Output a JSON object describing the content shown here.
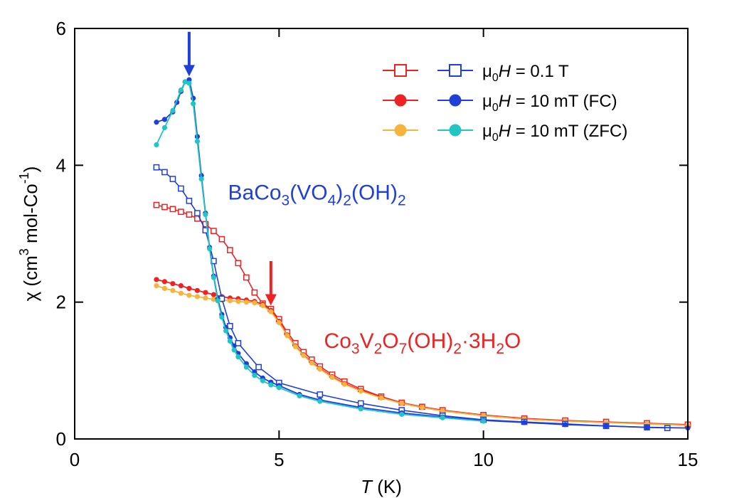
{
  "chart_data": {
    "type": "line",
    "xlabel": "T (K)",
    "xlabel_parts": {
      "var": "T",
      "unit": " (K)"
    },
    "ylabel": "χ (cm3 mol-Co-1)",
    "ylabel_parts": {
      "base": "χ (cm",
      "sup1": "3",
      "mid": " mol-Co",
      "sup2": "-1",
      "end": ")"
    },
    "xlim": [
      0,
      15
    ],
    "ylim": [
      0,
      6
    ],
    "xticks": [
      0,
      5,
      10,
      15
    ],
    "yticks": [
      0,
      2,
      4,
      6
    ],
    "xtick_labels": [
      "0",
      "5",
      "10",
      "15"
    ],
    "ytick_labels": [
      "0",
      "2",
      "4",
      "6"
    ],
    "grid": false,
    "legend_position": "top-right",
    "legend": [
      {
        "label": "μ0H = 0.1 T",
        "parts": {
          "mu": "μ",
          "sub": "0",
          "var": "H",
          "rest": " = 0.1 T"
        },
        "marker": "square-open",
        "colors": [
          "#ee2222",
          "#1f3fd8"
        ]
      },
      {
        "label": "μ0H = 10 mT (FC)",
        "parts": {
          "mu": "μ",
          "sub": "0",
          "var": "H",
          "rest": " = 10 mT (FC)"
        },
        "marker": "circle-filled",
        "colors": [
          "#ee2222",
          "#1f3fd8"
        ]
      },
      {
        "label": "μ0H = 10 mT (ZFC)",
        "parts": {
          "mu": "μ",
          "sub": "0",
          "var": "H",
          "rest": " = 10 mT (ZFC)"
        },
        "marker": "circle-filled",
        "colors": [
          "#f5b53c",
          "#22c4c4"
        ]
      }
    ],
    "annotations": [
      {
        "text": "BaCo3(VO4)2(OH)2",
        "color": "#1f3fd8",
        "runs": [
          [
            "BaCo",
            ""
          ],
          [
            "3",
            "sub"
          ],
          [
            "(VO",
            ""
          ],
          [
            "4",
            "sub"
          ],
          [
            ")",
            ""
          ],
          [
            "2",
            "sub"
          ],
          [
            "(OH)",
            ""
          ],
          [
            "2",
            "sub"
          ]
        ],
        "x": 3.75,
        "y": 3.5
      },
      {
        "text": "Co3V2O7(OH)2·3H2O",
        "color": "#ee2222",
        "runs": [
          [
            "Co",
            ""
          ],
          [
            "3",
            "sub"
          ],
          [
            "V",
            ""
          ],
          [
            "2",
            "sub"
          ],
          [
            "O",
            ""
          ],
          [
            "7",
            "sub"
          ],
          [
            "(OH)",
            ""
          ],
          [
            "2",
            "sub"
          ],
          [
            "·3H",
            ""
          ],
          [
            "2",
            "sub"
          ],
          [
            "O",
            ""
          ]
        ],
        "x": 6.1,
        "y": 1.33
      }
    ],
    "arrows": [
      {
        "name": "blue-transition-arrow",
        "color": "#1f3fd8",
        "x": 2.8,
        "y_top": 5.95,
        "y_tip": 5.3
      },
      {
        "name": "red-transition-arrow",
        "color": "#ee2222",
        "x": 4.8,
        "y_top": 2.6,
        "y_tip": 1.95
      }
    ],
    "series": [
      {
        "compound": "Co3V2O7(OH)2·3H2O",
        "field": "0.1 T",
        "color": "#ee2222",
        "marker": "square-open",
        "x": [
          2.0,
          2.2,
          2.4,
          2.6,
          2.8,
          3.0,
          3.2,
          3.4,
          3.6,
          3.8,
          4.0,
          4.2,
          4.4,
          4.6,
          4.8,
          5.0,
          5.2,
          5.4,
          5.6,
          5.8,
          6.0,
          6.3,
          6.6,
          7.0,
          7.5,
          8.0,
          8.5,
          9.0,
          10.0,
          11.0,
          12.0,
          13.0,
          14.0,
          15.0
        ],
        "y": [
          3.42,
          3.39,
          3.36,
          3.32,
          3.28,
          3.22,
          3.14,
          3.04,
          2.92,
          2.76,
          2.57,
          2.36,
          2.14,
          1.98,
          1.9,
          1.75,
          1.56,
          1.4,
          1.27,
          1.16,
          1.06,
          0.94,
          0.84,
          0.73,
          0.62,
          0.53,
          0.47,
          0.42,
          0.35,
          0.3,
          0.27,
          0.25,
          0.23,
          0.21
        ]
      },
      {
        "compound": "Co3V2O7(OH)2·3H2O",
        "field": "10 mT (FC)",
        "color": "#ee2222",
        "marker": "circle-filled",
        "x": [
          2.0,
          2.2,
          2.4,
          2.6,
          2.8,
          3.0,
          3.2,
          3.4,
          3.6,
          3.8,
          4.0,
          4.2,
          4.4,
          4.6,
          4.8,
          5.0,
          5.2,
          5.4,
          5.6,
          5.8,
          6.0,
          6.3,
          6.6,
          7.0,
          7.5,
          8.0,
          8.5,
          9.0,
          10.0,
          11.0,
          12.0,
          13.0,
          14.0,
          15.0
        ],
        "y": [
          2.33,
          2.3,
          2.27,
          2.24,
          2.2,
          2.17,
          2.14,
          2.11,
          2.08,
          2.06,
          2.05,
          2.03,
          2.01,
          1.97,
          1.88,
          1.72,
          1.52,
          1.36,
          1.23,
          1.12,
          1.03,
          0.91,
          0.81,
          0.71,
          0.61,
          0.52,
          0.46,
          0.41,
          0.34,
          0.29,
          0.26,
          0.24,
          0.22,
          0.2
        ]
      },
      {
        "compound": "Co3V2O7(OH)2·3H2O",
        "field": "10 mT (ZFC)",
        "color": "#f5b53c",
        "marker": "circle-filled",
        "x": [
          2.0,
          2.2,
          2.4,
          2.6,
          2.8,
          3.0,
          3.2,
          3.4,
          3.6,
          3.8,
          4.0,
          4.2,
          4.4,
          4.6,
          4.8,
          5.0,
          5.2,
          5.4,
          5.6,
          5.8,
          6.0,
          6.3,
          6.6,
          7.0,
          7.5,
          8.0,
          8.5,
          9.0,
          10.0,
          11.0,
          12.0,
          13.0,
          14.0,
          15.0
        ],
        "y": [
          2.24,
          2.2,
          2.17,
          2.13,
          2.1,
          2.08,
          2.06,
          2.04,
          2.03,
          2.02,
          2.01,
          2.0,
          1.99,
          1.95,
          1.86,
          1.7,
          1.51,
          1.35,
          1.22,
          1.11,
          1.02,
          0.9,
          0.8,
          0.7,
          0.6,
          0.52,
          0.46,
          0.41,
          0.34,
          0.29,
          0.26,
          0.24,
          0.22,
          0.2
        ]
      },
      {
        "compound": "BaCo3(VO4)2(OH)2",
        "field": "0.1 T",
        "color": "#1f3fd8",
        "marker": "square-open",
        "x": [
          2.0,
          2.2,
          2.4,
          2.6,
          2.8,
          3.0,
          3.2,
          3.4,
          3.6,
          3.8,
          4.0,
          4.5,
          5.0,
          6.0,
          7.0,
          8.0,
          9.0,
          10.0,
          11.0,
          12.0,
          13.0,
          14.0,
          14.5
        ],
        "y": [
          3.97,
          3.9,
          3.8,
          3.66,
          3.48,
          3.3,
          3.05,
          2.6,
          2.05,
          1.65,
          1.4,
          1.05,
          0.82,
          0.65,
          0.52,
          0.42,
          0.34,
          0.28,
          0.25,
          0.22,
          0.19,
          0.17,
          0.16
        ]
      },
      {
        "compound": "BaCo3(VO4)2(OH)2",
        "field": "10 mT (FC)",
        "color": "#1f3fd8",
        "marker": "circle-filled",
        "x": [
          2.0,
          2.2,
          2.4,
          2.5,
          2.6,
          2.7,
          2.8,
          2.9,
          3.0,
          3.1,
          3.2,
          3.3,
          3.4,
          3.5,
          3.6,
          3.7,
          3.8,
          3.9,
          4.0,
          4.2,
          4.4,
          4.6,
          4.8,
          5.0,
          5.5,
          6.0,
          7.0,
          8.0,
          9.0,
          10.0,
          11.0,
          12.0,
          13.0,
          14.0,
          15.0
        ],
        "y": [
          4.63,
          4.67,
          4.78,
          4.92,
          5.08,
          5.22,
          5.25,
          4.98,
          4.42,
          3.85,
          3.3,
          2.8,
          2.38,
          2.05,
          1.82,
          1.63,
          1.48,
          1.36,
          1.25,
          1.1,
          0.98,
          0.89,
          0.83,
          0.78,
          0.65,
          0.57,
          0.46,
          0.38,
          0.32,
          0.27,
          0.24,
          0.21,
          0.19,
          0.17,
          0.16
        ]
      },
      {
        "compound": "BaCo3(VO4)2(OH)2",
        "field": "10 mT (ZFC)",
        "color": "#22c4c4",
        "marker": "circle-filled",
        "x": [
          2.0,
          2.2,
          2.4,
          2.6,
          2.7,
          2.8,
          2.9,
          3.0,
          3.1,
          3.2,
          3.3,
          3.4,
          3.5,
          3.6,
          3.7,
          3.8,
          3.9,
          4.0,
          4.2,
          4.4,
          4.6,
          4.8,
          5.0,
          5.5,
          6.0,
          7.0,
          8.0,
          9.0,
          10.0
        ],
        "y": [
          4.3,
          4.55,
          4.8,
          5.1,
          5.22,
          5.2,
          4.9,
          4.35,
          3.8,
          3.28,
          2.78,
          2.36,
          2.02,
          1.78,
          1.58,
          1.43,
          1.3,
          1.2,
          1.05,
          0.93,
          0.85,
          0.79,
          0.75,
          0.63,
          0.55,
          0.44,
          0.36,
          0.31,
          0.26
        ]
      }
    ]
  }
}
